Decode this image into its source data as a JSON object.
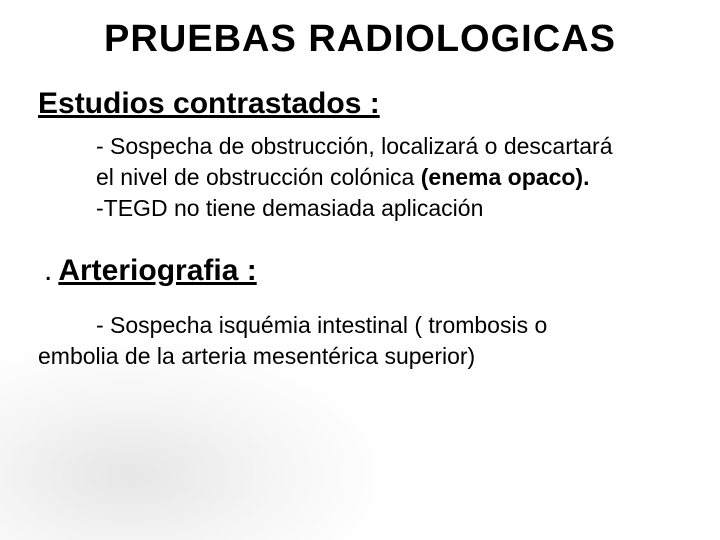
{
  "title": "PRUEBAS RADIOLOGICAS",
  "title_fontsize": 38,
  "heading1": "Estudios contrastados :",
  "heading_fontsize": 30,
  "body_fontsize": 23,
  "block1_line1": "- Sospecha de obstrucción, localizará o descartará",
  "block1_line2_pre": " el nivel de obstrucción colónica ",
  "block1_line2_bold": "(enema opaco).",
  "block1_line3": "-TEGD no tiene demasiada aplicación",
  "dot": ".",
  "heading2": "Arteriografia :",
  "block2_line1": "- Sospecha isquémia intestinal ( trombosis o",
  "block2_line2": "embolia de la arteria mesentérica superior)",
  "colors": {
    "text": "#000000",
    "background": "#ffffff",
    "smudge": "#cccccc"
  },
  "font_family": "Comic Sans MS"
}
